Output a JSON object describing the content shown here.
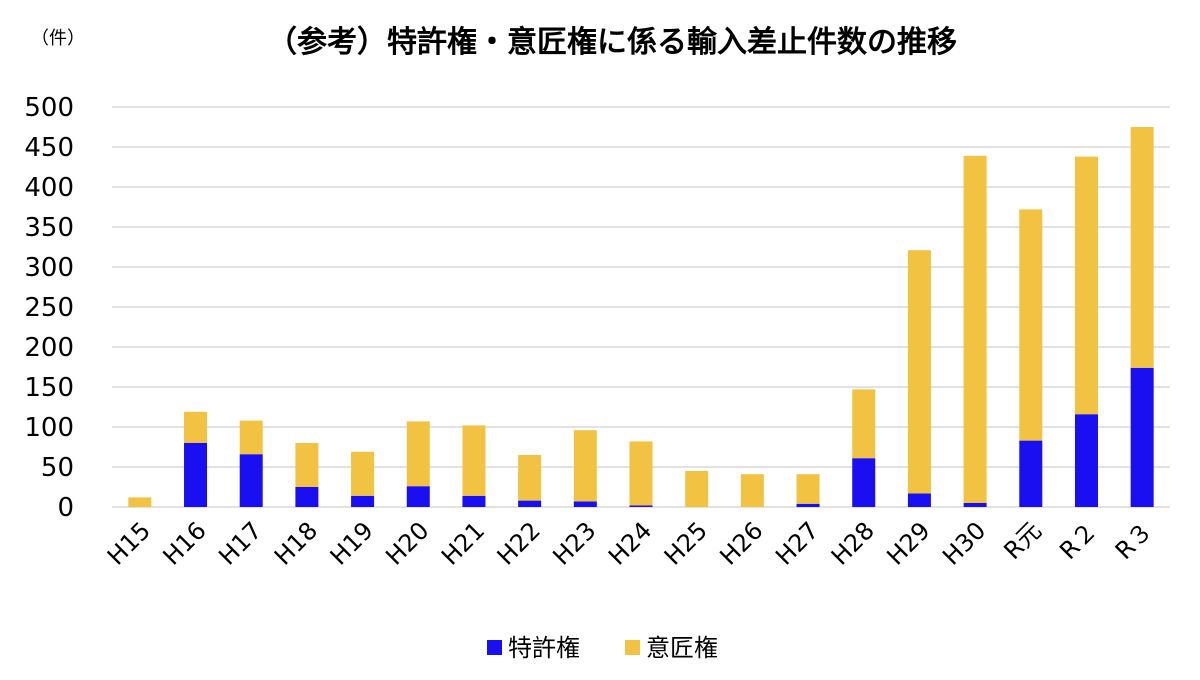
{
  "chart_data": {
    "type": "bar",
    "stacked": true,
    "title": "（参考）特許権・意匠権に係る輸入差止件数の推移",
    "unit_label": "（件）",
    "categories": [
      "H15",
      "H16",
      "H17",
      "H18",
      "H19",
      "H20",
      "H21",
      "H22",
      "H23",
      "H24",
      "H25",
      "H26",
      "H27",
      "H28",
      "H29",
      "H30",
      "R元",
      "R２",
      "R３"
    ],
    "series": [
      {
        "name": "特許権",
        "color": "#1a0ff0",
        "values": [
          0,
          80,
          66,
          25,
          14,
          26,
          14,
          8,
          7,
          2,
          0,
          0,
          4,
          61,
          17,
          5,
          83,
          116,
          174
        ]
      },
      {
        "name": "意匠権",
        "color": "#f2c242",
        "values": [
          12,
          39,
          42,
          55,
          55,
          81,
          88,
          57,
          89,
          80,
          45,
          41,
          37,
          86,
          304,
          434,
          289,
          322,
          301
        ]
      }
    ],
    "ylim": [
      0,
      500
    ],
    "yticks": [
      0,
      50,
      100,
      150,
      200,
      250,
      300,
      350,
      400,
      450,
      500
    ],
    "grid": true,
    "legend_position": "bottom"
  }
}
